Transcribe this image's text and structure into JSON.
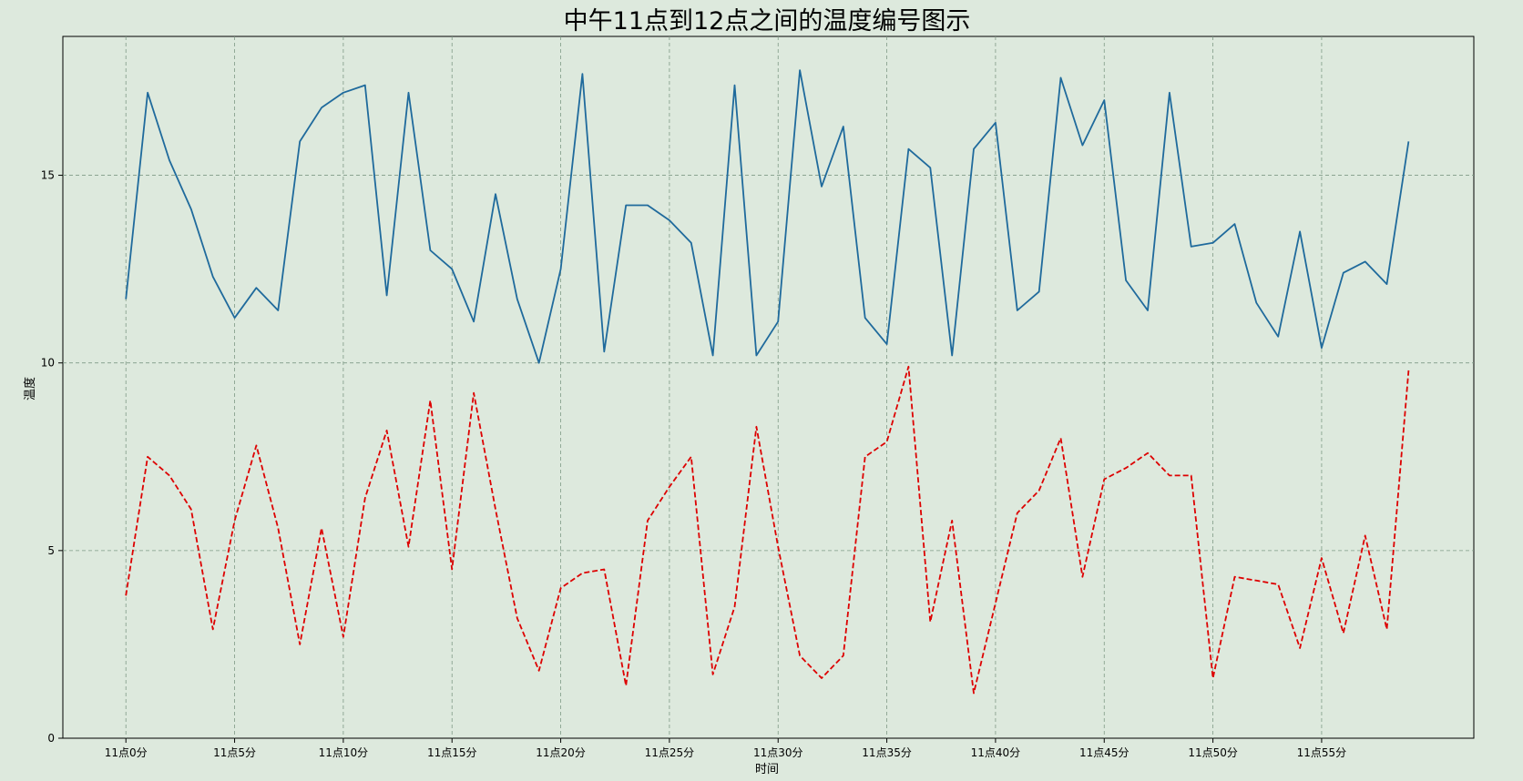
{
  "chart_data": {
    "type": "line",
    "title": "中午11点到12点之间的温度编号图示",
    "xlabel": "时间",
    "ylabel": "温度",
    "xlim": [
      -2.9,
      62
    ],
    "ylim": [
      0,
      18.7
    ],
    "grid": true,
    "x_tick_labels": [
      "11点0分",
      "11点5分",
      "11点10分",
      "11点15分",
      "11点20分",
      "11点25分",
      "11点30分",
      "11点35分",
      "11点40分",
      "11点45分",
      "11点50分",
      "11点55分"
    ],
    "x_tick_values": [
      0,
      5,
      10,
      15,
      20,
      25,
      30,
      35,
      40,
      45,
      50,
      55
    ],
    "y_tick_values": [
      0,
      5,
      10,
      15
    ],
    "y_tick_labels": [
      "0",
      "5",
      "10",
      "15"
    ],
    "series": [
      {
        "style": "solid",
        "color": "#1f6a9c",
        "values": [
          11.7,
          17.2,
          15.4,
          14.1,
          12.3,
          11.2,
          12.0,
          11.4,
          15.9,
          16.8,
          17.2,
          17.4,
          11.8,
          17.2,
          13.0,
          12.5,
          11.1,
          14.5,
          11.7,
          10.0,
          12.5,
          17.7,
          10.3,
          14.2,
          14.2,
          13.8,
          13.2,
          10.2,
          17.4,
          10.2,
          11.1,
          17.8,
          14.7,
          16.3,
          11.2,
          10.5,
          15.7,
          15.2,
          10.2,
          15.7,
          16.4,
          11.4,
          11.9,
          17.6,
          15.8,
          17.0,
          12.2,
          11.4,
          17.2,
          13.1,
          13.2,
          13.7,
          11.6,
          10.7,
          13.5,
          10.4,
          12.4,
          12.7,
          12.1,
          15.9
        ]
      },
      {
        "style": "dashed",
        "color": "#dd0000",
        "values": [
          3.8,
          7.5,
          7.0,
          6.1,
          2.9,
          5.8,
          7.8,
          5.6,
          2.5,
          5.6,
          2.7,
          6.4,
          8.2,
          5.1,
          9.0,
          4.5,
          9.2,
          6.1,
          3.2,
          1.8,
          4.0,
          4.4,
          4.5,
          1.4,
          5.8,
          6.7,
          7.5,
          1.7,
          3.5,
          8.3,
          5.1,
          2.2,
          1.6,
          2.2,
          7.5,
          7.9,
          9.9,
          3.1,
          5.8,
          1.2,
          3.6,
          6.0,
          6.6,
          8.0,
          4.3,
          6.9,
          7.2,
          7.6,
          7.0,
          7.0,
          1.6,
          4.3,
          4.2,
          4.1,
          2.4,
          4.8,
          2.8,
          5.4,
          2.9,
          9.8
        ]
      }
    ]
  }
}
